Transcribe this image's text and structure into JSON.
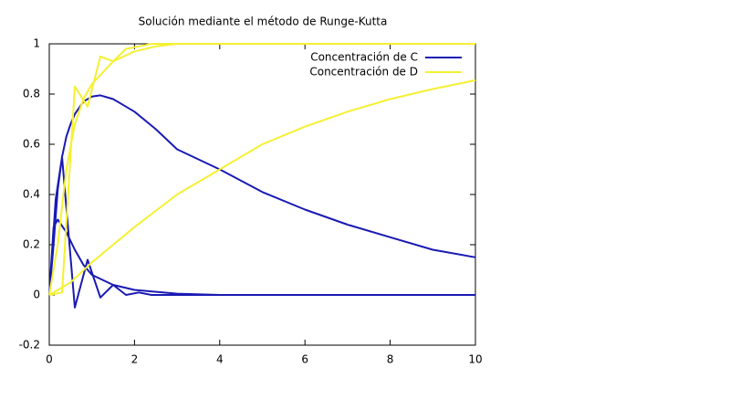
{
  "chart_data": {
    "type": "line",
    "title": "Solución mediante el método de Runge-Kutta",
    "xlim": [
      0,
      10
    ],
    "xticks": [
      0,
      2,
      4,
      6,
      8,
      10
    ],
    "ylim": [
      -0.2,
      1
    ],
    "yticks": [
      -0.2,
      0,
      0.2,
      0.4,
      0.6,
      0.8,
      1
    ],
    "legend": "top-right",
    "series": [
      {
        "name": "Concentración de C",
        "color": "#1a1ab4",
        "x": [
          0,
          0.1,
          0.2,
          0.3,
          0.4,
          0.5,
          0.6,
          0.8,
          1,
          1.2,
          1.5,
          2,
          2.5,
          3,
          3.5,
          4,
          5,
          6,
          7,
          8,
          9,
          10,
          null,
          0,
          0.1,
          0.2,
          0.4,
          0.6,
          0.8,
          1,
          1.5,
          2,
          3,
          4,
          6,
          8,
          10,
          null,
          0,
          0.15,
          0.3,
          0.6,
          0.9,
          1.2,
          1.5,
          1.8,
          2.1,
          2.4,
          2.7,
          3,
          10
        ],
        "values": [
          0,
          0.2,
          0.42,
          0.55,
          0.63,
          0.68,
          0.72,
          0.77,
          0.79,
          0.795,
          0.78,
          0.73,
          0.66,
          0.58,
          0.54,
          0.5,
          0.41,
          0.34,
          0.28,
          0.23,
          0.18,
          0.15,
          null,
          0,
          0.27,
          0.3,
          0.25,
          0.18,
          0.12,
          0.08,
          0.04,
          0.02,
          0.005,
          0,
          0,
          0,
          0,
          null,
          0,
          0.38,
          0.55,
          -0.05,
          0.14,
          -0.01,
          0.04,
          0,
          0.01,
          0,
          0,
          0,
          0
        ]
      },
      {
        "name": "Concentración de D",
        "color": "#f5f032",
        "x": [
          0,
          0.5,
          1,
          1.5,
          2,
          3,
          4,
          5,
          6,
          7,
          8,
          9,
          10,
          null,
          0,
          0.2,
          0.4,
          0.6,
          0.8,
          1,
          1.5,
          2,
          2.5,
          3,
          4,
          10,
          null,
          0,
          0.3,
          0.6,
          0.9,
          1.2,
          1.5,
          1.8,
          2.1,
          2.4,
          3,
          10
        ],
        "values": [
          0,
          0.05,
          0.13,
          0.2,
          0.27,
          0.4,
          0.5,
          0.6,
          0.67,
          0.73,
          0.78,
          0.82,
          0.855,
          null,
          0,
          0.2,
          0.5,
          0.68,
          0.78,
          0.84,
          0.93,
          0.97,
          0.99,
          1,
          1,
          1,
          null,
          0,
          0.01,
          0.83,
          0.75,
          0.95,
          0.93,
          0.98,
          0.99,
          1,
          1,
          1
        ]
      }
    ]
  }
}
